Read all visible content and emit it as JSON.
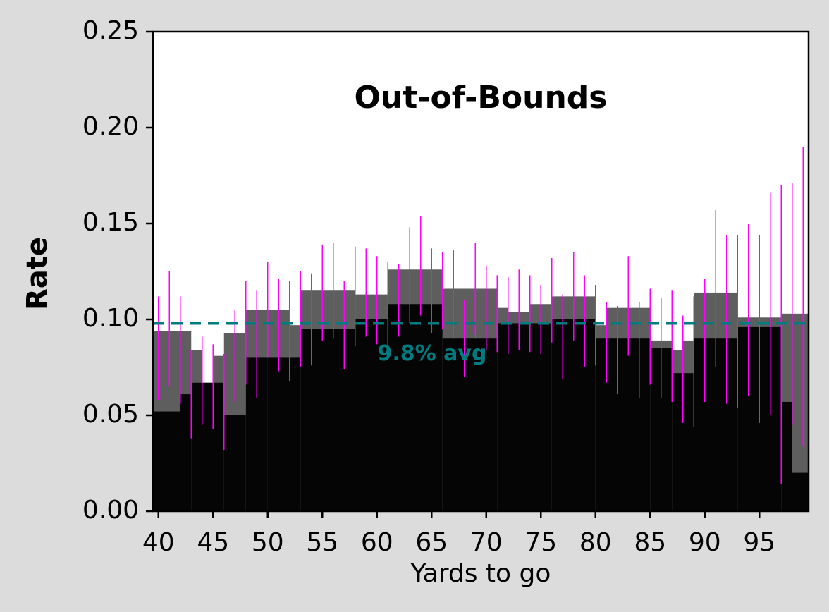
{
  "chart_data": {
    "type": "histogram",
    "title": "Out-of-Bounds",
    "xlabel": "Yards to go",
    "ylabel": "Rate",
    "xlim": [
      39.5,
      99.5
    ],
    "ylim": [
      0,
      0.25
    ],
    "xticks": [
      40,
      45,
      50,
      55,
      60,
      65,
      70,
      75,
      80,
      85,
      90,
      95
    ],
    "yticks": [
      {
        "value": 0,
        "label": "0.00"
      },
      {
        "value": 0.05,
        "label": "0.05"
      },
      {
        "value": 0.1,
        "label": "0.10"
      },
      {
        "value": 0.15,
        "label": "0.15"
      },
      {
        "value": 0.2,
        "label": "0.20"
      },
      {
        "value": 0.25,
        "label": "0.25"
      }
    ],
    "series": [
      {
        "color": "#5e5e5e",
        "bins": [
          39.5,
          43,
          44,
          45,
          46,
          48,
          52,
          53,
          58,
          61,
          66,
          69,
          71,
          72,
          74,
          76,
          80,
          81,
          85,
          87,
          88,
          89,
          93,
          97,
          99.5
        ],
        "values": [
          0.094,
          0.084,
          0.067,
          0.081,
          0.093,
          0.105,
          0.097,
          0.115,
          0.113,
          0.126,
          0.116,
          0.116,
          0.106,
          0.104,
          0.108,
          0.112,
          0.097,
          0.106,
          0.089,
          0.084,
          0.089,
          0.114,
          0.101,
          0.103
        ]
      },
      {
        "color": "#050505",
        "bins": [
          39.5,
          42,
          43,
          46,
          48,
          50,
          53,
          58,
          61,
          66,
          71,
          76,
          80,
          85,
          87,
          89,
          93,
          97,
          98,
          99.5
        ],
        "values": [
          0.052,
          0.061,
          0.067,
          0.05,
          0.08,
          0.08,
          0.095,
          0.1,
          0.108,
          0.09,
          0.098,
          0.1,
          0.09,
          0.085,
          0.072,
          0.09,
          0.096,
          0.057,
          0.02
        ]
      }
    ],
    "errorbars": {
      "color": "#ff00ff",
      "x": [
        40,
        41,
        42,
        43,
        44,
        45,
        46,
        47,
        48,
        49,
        50,
        51,
        52,
        53,
        54,
        55,
        56,
        57,
        58,
        59,
        60,
        61,
        62,
        63,
        64,
        65,
        66,
        67,
        68,
        69,
        70,
        71,
        72,
        73,
        74,
        75,
        76,
        77,
        78,
        79,
        80,
        81,
        82,
        83,
        84,
        85,
        86,
        87,
        88,
        89,
        90,
        91,
        92,
        93,
        94,
        95,
        96,
        97,
        98,
        99
      ],
      "values": [
        0.085,
        0.095,
        0.084,
        0.061,
        0.068,
        0.065,
        0.057,
        0.081,
        0.093,
        0.087,
        0.105,
        0.097,
        0.094,
        0.1,
        0.1,
        0.114,
        0.115,
        0.097,
        0.112,
        0.114,
        0.11,
        0.108,
        0.11,
        0.123,
        0.128,
        0.115,
        0.115,
        0.113,
        0.09,
        0.116,
        0.106,
        0.103,
        0.102,
        0.105,
        0.103,
        0.1,
        0.11,
        0.091,
        0.112,
        0.099,
        0.097,
        0.088,
        0.084,
        0.107,
        0.084,
        0.091,
        0.085,
        0.086,
        0.074,
        0.078,
        0.089,
        0.116,
        0.1,
        0.099,
        0.105,
        0.095,
        0.108,
        0.092,
        0.108,
        0.112
      ],
      "errors": [
        0.027,
        0.03,
        0.028,
        0.023,
        0.023,
        0.022,
        0.025,
        0.024,
        0.027,
        0.028,
        0.025,
        0.024,
        0.026,
        0.025,
        0.024,
        0.025,
        0.025,
        0.023,
        0.026,
        0.023,
        0.023,
        0.022,
        0.019,
        0.025,
        0.026,
        0.022,
        0.02,
        0.023,
        0.02,
        0.024,
        0.022,
        0.02,
        0.02,
        0.021,
        0.02,
        0.018,
        0.022,
        0.022,
        0.023,
        0.024,
        0.021,
        0.021,
        0.023,
        0.026,
        0.025,
        0.025,
        0.026,
        0.029,
        0.028,
        0.034,
        0.032,
        0.041,
        0.044,
        0.045,
        0.045,
        0.049,
        0.058,
        0.078,
        0.063,
        0.078
      ]
    },
    "avg": 0.098,
    "avg_color": "#007b80",
    "annotation": "9.8% avg"
  }
}
